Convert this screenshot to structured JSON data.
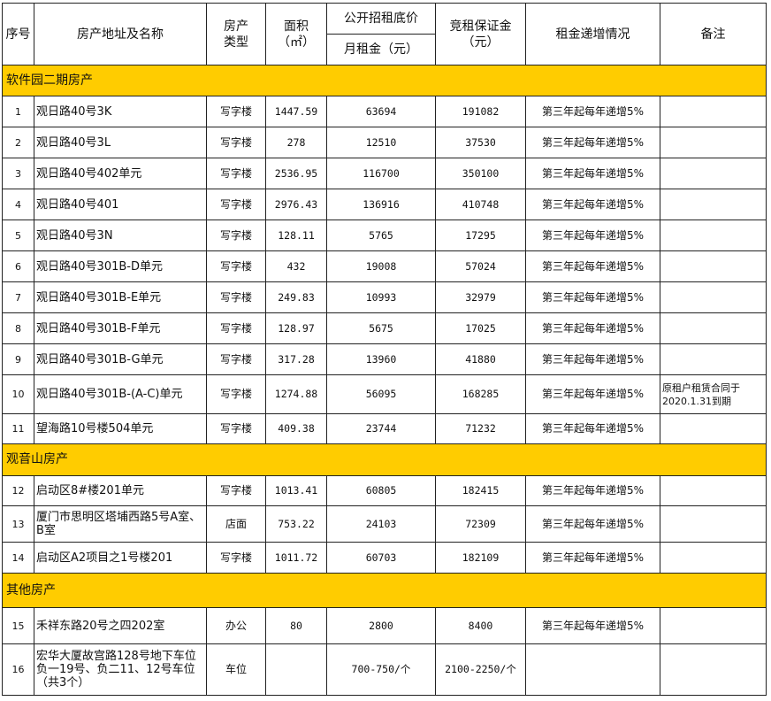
{
  "headers": {
    "seq": "序号",
    "address": "房产地址及名称",
    "type": "房产类型",
    "area": "面积（㎡）",
    "price_group": "公开招租底价",
    "monthly_rent": "月租金（元）",
    "deposit": "竞租保证金（元）",
    "increase": "租金递增情况",
    "note": "备注"
  },
  "sections": [
    {
      "title": "软件园二期房产",
      "rows": [
        {
          "no": "1",
          "address": "观日路40号3K",
          "type": "写字楼",
          "area": "1447.59",
          "rent": "63694",
          "deposit": "191082",
          "increase": "第三年起每年递增5%",
          "note": ""
        },
        {
          "no": "2",
          "address": "观日路40号3L",
          "type": "写字楼",
          "area": "278",
          "rent": "12510",
          "deposit": "37530",
          "increase": "第三年起每年递增5%",
          "note": ""
        },
        {
          "no": "3",
          "address": "观日路40号402单元",
          "type": "写字楼",
          "area": "2536.95",
          "rent": "116700",
          "deposit": "350100",
          "increase": "第三年起每年递增5%",
          "note": ""
        },
        {
          "no": "4",
          "address": "观日路40号401",
          "type": "写字楼",
          "area": "2976.43",
          "rent": "136916",
          "deposit": "410748",
          "increase": "第三年起每年递增5%",
          "note": ""
        },
        {
          "no": "5",
          "address": "观日路40号3N",
          "type": "写字楼",
          "area": "128.11",
          "rent": "5765",
          "deposit": "17295",
          "increase": "第三年起每年递增5%",
          "note": ""
        },
        {
          "no": "6",
          "address": "观日路40号301B-D单元",
          "type": "写字楼",
          "area": "432",
          "rent": "19008",
          "deposit": "57024",
          "increase": "第三年起每年递增5%",
          "note": ""
        },
        {
          "no": "7",
          "address": "观日路40号301B-E单元",
          "type": "写字楼",
          "area": "249.83",
          "rent": "10993",
          "deposit": "32979",
          "increase": "第三年起每年递增5%",
          "note": ""
        },
        {
          "no": "8",
          "address": "观日路40号301B-F单元",
          "type": "写字楼",
          "area": "128.97",
          "rent": "5675",
          "deposit": "17025",
          "increase": "第三年起每年递增5%",
          "note": ""
        },
        {
          "no": "9",
          "address": "观日路40号301B-G单元",
          "type": "写字楼",
          "area": "317.28",
          "rent": "13960",
          "deposit": "41880",
          "increase": "第三年起每年递增5%",
          "note": ""
        },
        {
          "no": "10",
          "address": "观日路40号301B-(A-C)单元",
          "type": "写字楼",
          "area": "1274.88",
          "rent": "56095",
          "deposit": "168285",
          "increase": "第三年起每年递增5%",
          "note": "原租户租赁合同于2020.1.31到期"
        },
        {
          "no": "11",
          "address": "望海路10号楼504单元",
          "type": "写字楼",
          "area": "409.38",
          "rent": "23744",
          "deposit": "71232",
          "increase": "第三年起每年递增5%",
          "note": ""
        }
      ]
    },
    {
      "title": "观音山房产",
      "rows": [
        {
          "no": "12",
          "address": "启动区8#楼201单元",
          "type": "写字楼",
          "area": "1013.41",
          "rent": "60805",
          "deposit": "182415",
          "increase": "第三年起每年递增5%",
          "note": ""
        },
        {
          "no": "13",
          "address": "厦门市思明区塔埔西路5号A室、B室",
          "type": "店面",
          "area": "753.22",
          "rent": "24103",
          "deposit": "72309",
          "increase": "第三年起每年递增5%",
          "note": ""
        },
        {
          "no": "14",
          "address": "启动区A2项目之1号楼201",
          "type": "写字楼",
          "area": "1011.72",
          "rent": "60703",
          "deposit": "182109",
          "increase": "第三年起每年递增5%",
          "note": ""
        }
      ]
    },
    {
      "title": "其他房产",
      "rows": [
        {
          "no": "15",
          "address": "禾祥东路20号之四202室",
          "type": "办公",
          "area": "80",
          "rent": "2800",
          "deposit": "8400",
          "increase": "第三年起每年递增5%",
          "note": ""
        },
        {
          "no": "16",
          "address": "宏华大厦故宫路128号地下车位负一19号、负二11、12号车位（共3个）",
          "type": "车位",
          "area": "",
          "rent": "700-750/个",
          "deposit": "2100-2250/个",
          "increase": "",
          "note": ""
        }
      ]
    }
  ]
}
